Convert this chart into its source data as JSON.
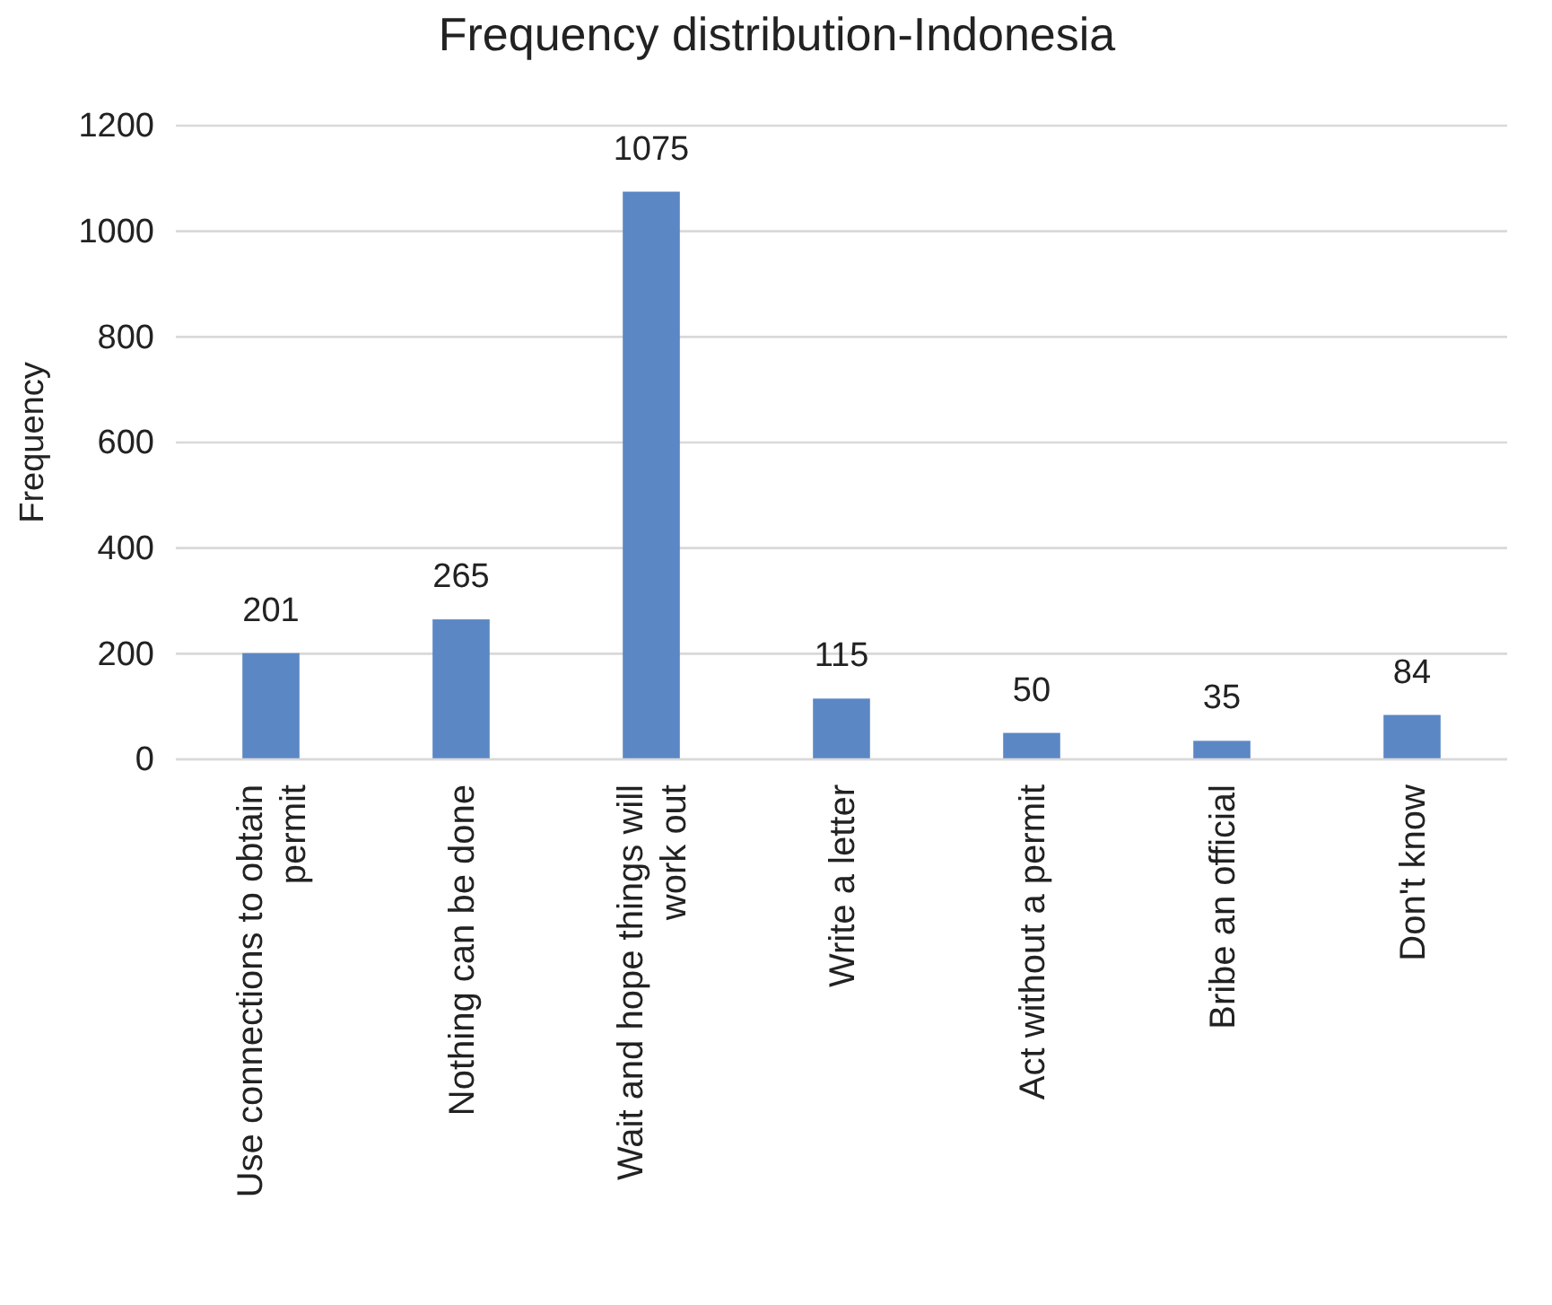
{
  "chart_data": {
    "type": "bar",
    "title": "Frequency distribution-Indonesia",
    "ylabel": "Frequency",
    "categories": [
      "Use connections to obtain permit",
      "Nothing can be done",
      "Wait and hope things will work out",
      "Write a letter",
      "Act without a permit",
      "Bribe an official",
      "Don't know"
    ],
    "values": [
      201,
      265,
      1075,
      115,
      50,
      35,
      84
    ],
    "color": "#5b87c5",
    "ylim": [
      0,
      1200
    ],
    "yticks": [
      0,
      200,
      400,
      600,
      800,
      1000,
      1200
    ],
    "grid": "y",
    "data_labels": true
  }
}
